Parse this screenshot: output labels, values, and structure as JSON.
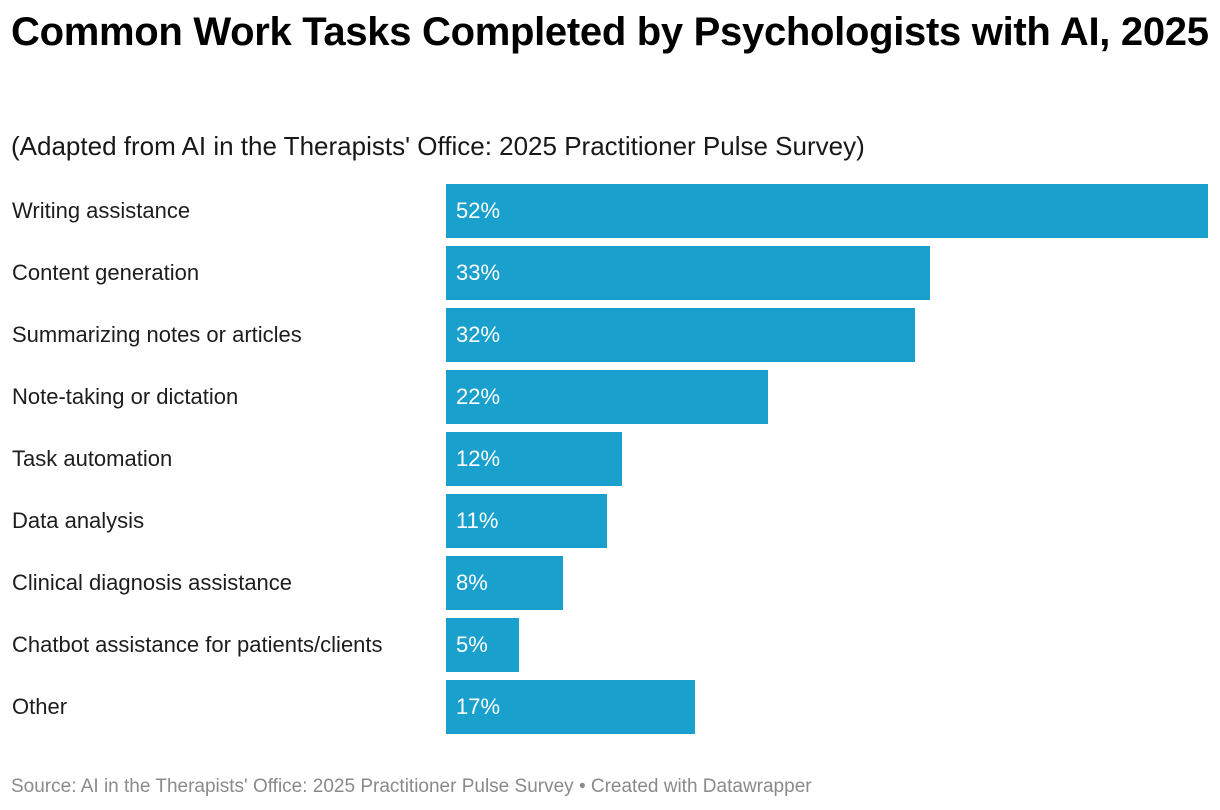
{
  "header": {
    "title": "Common Work Tasks Completed by Psychologists with AI, 2025",
    "subtitle": "(Adapted from AI in the Therapists' Office: 2025 Practitioner Pulse Survey)"
  },
  "footer": {
    "text": "Source: AI in the Therapists' Office: 2025 Practitioner Pulse Survey • Created with Datawrapper"
  },
  "colors": {
    "bar": "#1aa0cd",
    "bar_label": "#ffffff"
  },
  "rows": [
    {
      "label": "Writing assistance",
      "value": 52,
      "display": "52%"
    },
    {
      "label": "Content generation",
      "value": 33,
      "display": "33%"
    },
    {
      "label": "Summarizing notes or articles",
      "value": 32,
      "display": "32%"
    },
    {
      "label": "Note-taking or dictation",
      "value": 22,
      "display": "22%"
    },
    {
      "label": "Task automation",
      "value": 12,
      "display": "12%"
    },
    {
      "label": "Data analysis",
      "value": 11,
      "display": "11%"
    },
    {
      "label": "Clinical diagnosis assistance",
      "value": 8,
      "display": "8%"
    },
    {
      "label": "Chatbot assistance for patients/clients",
      "value": 5,
      "display": "5%"
    },
    {
      "label": "Other",
      "value": 17,
      "display": "17%"
    }
  ],
  "chart_data": {
    "type": "bar",
    "orientation": "horizontal",
    "title": "Common Work Tasks Completed by Psychologists with AI, 2025",
    "subtitle": "(Adapted from AI in the Therapists' Office: 2025 Practitioner Pulse Survey)",
    "categories": [
      "Writing assistance",
      "Content generation",
      "Summarizing notes or articles",
      "Note-taking or dictation",
      "Task automation",
      "Data analysis",
      "Clinical diagnosis assistance",
      "Chatbot assistance for patients/clients",
      "Other"
    ],
    "values": [
      52,
      33,
      32,
      22,
      12,
      11,
      8,
      5,
      17
    ],
    "value_format": "percent",
    "xlabel": "",
    "ylabel": "",
    "xlim": [
      0,
      52
    ],
    "grid": false,
    "legend": null,
    "source": "Source: AI in the Therapists' Office: 2025 Practitioner Pulse Survey • Created with Datawrapper"
  }
}
